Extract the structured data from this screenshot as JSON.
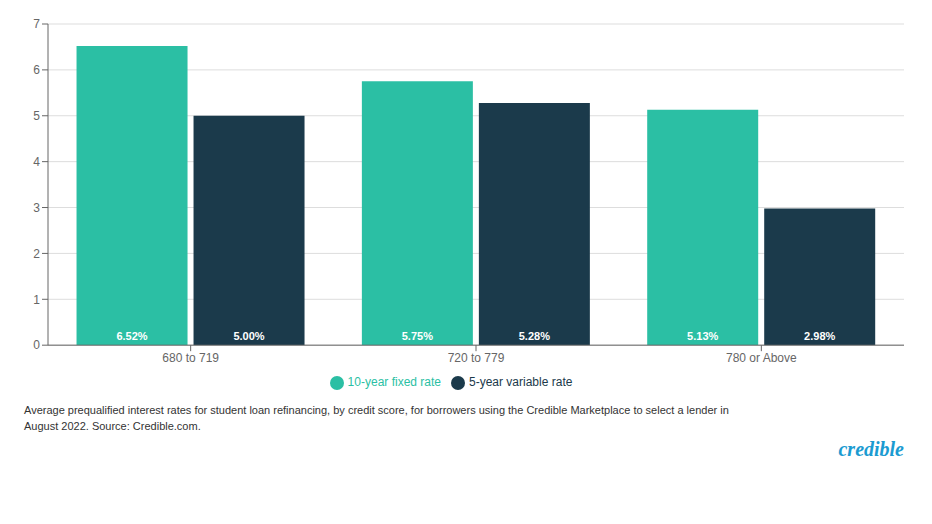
{
  "chart_data": {
    "type": "bar",
    "categories": [
      "680 to 719",
      "720 to 779",
      "780 or Above"
    ],
    "series": [
      {
        "name": "10-year fixed rate",
        "color": "#2BBFA4",
        "values": [
          6.52,
          5.75,
          5.13
        ],
        "value_labels": [
          "6.52%",
          "5.75%",
          "5.13%"
        ]
      },
      {
        "name": "5-year variable rate",
        "color": "#1B3A4B",
        "values": [
          5.0,
          5.28,
          2.98
        ],
        "value_labels": [
          "5.00%",
          "5.28%",
          "2.98%"
        ]
      }
    ],
    "ylim": [
      0,
      7
    ],
    "yticks": [
      0,
      1,
      2,
      3,
      4,
      5,
      6,
      7
    ],
    "grid": true,
    "legend": "bottom",
    "data_labels": true,
    "annotations": [
      {
        "text": "Average prequalified interest rates for student loan refinancing, by credit score, for borrowers using the Credible Marketplace to select a lender in"
      },
      {
        "text": "August 2022. Source: Credible.com."
      },
      {
        "text": "credible",
        "color": "#1B9BD1"
      }
    ]
  }
}
